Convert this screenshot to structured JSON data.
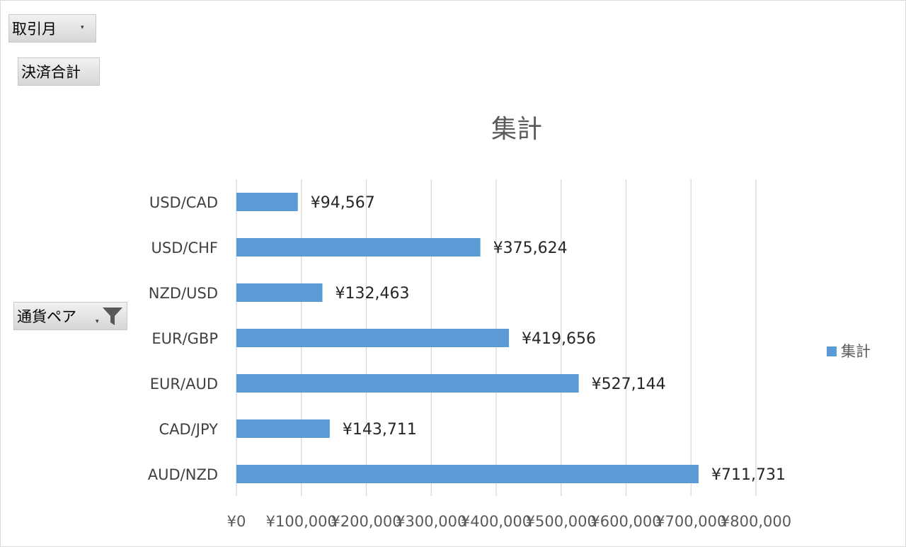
{
  "filters": {
    "month": {
      "label": "取引月",
      "dropdown": "▾"
    },
    "value_field": {
      "label": "決済合計"
    },
    "axis_field": {
      "label": "通貨ペア",
      "dropdown": "▾",
      "icon": "filter-icon"
    }
  },
  "colors": {
    "bar": "#5b9bd5",
    "grid": "#d9d9d9"
  },
  "chart_data": {
    "type": "bar",
    "orientation": "horizontal",
    "title": "集計",
    "categories": [
      "USD/CAD",
      "USD/CHF",
      "NZD/USD",
      "EUR/GBP",
      "EUR/AUD",
      "CAD/JPY",
      "AUD/NZD"
    ],
    "series": [
      {
        "name": "集計",
        "values": [
          94567,
          375624,
          132463,
          419656,
          527144,
          143711,
          711731
        ],
        "labels": [
          "¥94,567",
          "¥375,624",
          "¥132,463",
          "¥419,656",
          "¥527,144",
          "¥143,711",
          "¥711,731"
        ]
      }
    ],
    "xlim": [
      0,
      800000
    ],
    "xticks": [
      0,
      100000,
      200000,
      300000,
      400000,
      500000,
      600000,
      700000,
      800000
    ],
    "xtick_labels": [
      "¥0",
      "¥100,000",
      "¥200,000",
      "¥300,000",
      "¥400,000",
      "¥500,000",
      "¥600,000",
      "¥700,000",
      "¥800,000"
    ],
    "grid": true,
    "legend": {
      "position": "right",
      "entries": [
        "集計"
      ]
    }
  }
}
